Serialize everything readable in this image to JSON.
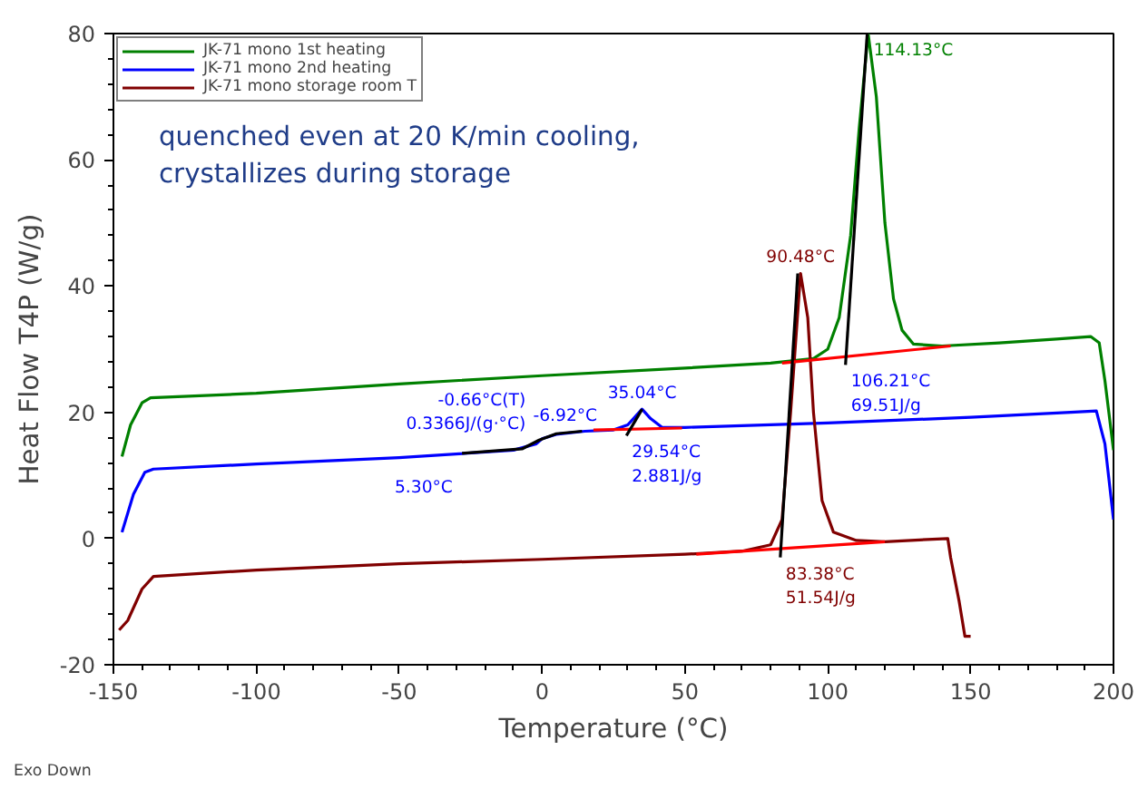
{
  "chart_data": {
    "type": "line",
    "xlabel": "Temperature (°C)",
    "ylabel": "Heat Flow T4P (W/g)",
    "xlim": [
      -150,
      200
    ],
    "ylim": [
      -20,
      80
    ],
    "xticks": [
      -150,
      -100,
      -50,
      0,
      50,
      100,
      150,
      200
    ],
    "yticks": [
      -20,
      0,
      20,
      40,
      60,
      80
    ],
    "grid": false,
    "legend": "top left",
    "marker": "none",
    "line_style": "solid",
    "series": [
      {
        "name": "JK-71 mono 1st heating",
        "color": "#008000",
        "x": [
          -147,
          -144,
          -140,
          -137,
          -100,
          -50,
          0,
          50,
          80,
          95,
          100,
          104,
          108,
          111,
          114.13,
          117,
          120,
          123,
          126,
          130,
          140,
          160,
          180,
          192,
          195,
          197,
          200
        ],
        "values": [
          13,
          18,
          21.5,
          22.3,
          23,
          24.5,
          25.8,
          27,
          27.8,
          28.5,
          30,
          35,
          48,
          65,
          80,
          70,
          50,
          38,
          33,
          30.8,
          30.5,
          31,
          31.6,
          32,
          31,
          25,
          14
        ]
      },
      {
        "name": "JK-71 mono 2nd heating",
        "color": "#0000ff",
        "x": [
          -147,
          -143,
          -139,
          -136,
          -100,
          -50,
          -10,
          -2,
          0,
          5,
          15,
          25,
          30,
          35,
          38,
          42,
          50,
          100,
          150,
          185,
          194,
          197,
          200
        ],
        "values": [
          1,
          7,
          10.5,
          11,
          11.8,
          12.8,
          14,
          15,
          15.8,
          16.5,
          17,
          17.2,
          18,
          20.5,
          19,
          17.6,
          17.6,
          18.3,
          19.2,
          20,
          20.2,
          15,
          3
        ]
      },
      {
        "name": "JK-71 mono storage room T",
        "color": "#800000",
        "x": [
          -148,
          -145,
          -140,
          -136,
          -100,
          -50,
          0,
          50,
          70,
          80,
          84,
          87,
          90.48,
          93,
          95,
          98,
          102,
          110,
          120,
          142,
          143,
          146,
          148,
          150
        ],
        "values": [
          -14.5,
          -13,
          -8,
          -6,
          -5,
          -4,
          -3.3,
          -2.5,
          -2,
          -1,
          3,
          20,
          42,
          35,
          20,
          6,
          1,
          -0.3,
          -0.5,
          0,
          -3,
          -10,
          -15.5,
          -15.5
        ]
      },
      {
        "color": "#ff0000",
        "x": [
          84,
          143
        ],
        "values": [
          27.8,
          30.5
        ]
      },
      {
        "color": "#ff0000",
        "x": [
          18,
          49
        ],
        "values": [
          17.2,
          17.5
        ]
      },
      {
        "color": "#ff0000",
        "x": [
          54,
          120
        ],
        "values": [
          -2.5,
          -0.5
        ]
      },
      {
        "color": "#000000",
        "x": [
          106.21,
          113.8
        ],
        "values": [
          27.5,
          80
        ]
      },
      {
        "color": "#000000",
        "x": [
          83.38,
          89.5
        ],
        "values": [
          -3,
          42
        ]
      },
      {
        "color": "#000000",
        "x": [
          29.54,
          35.04
        ],
        "values": [
          16.3,
          20.5
        ]
      },
      {
        "color": "#000000",
        "x": [
          -28,
          -7,
          -1,
          5,
          14
        ],
        "values": [
          13.5,
          14.2,
          15.6,
          16.6,
          17
        ]
      }
    ],
    "annotations": [
      "quenched even at 20 K/min cooling,\ncrystallizes during storage",
      "5.30°C",
      "Exo Down",
      {
        "text": "114.13°C",
        "x": 114.13,
        "y": 80
      },
      {
        "text": "106.21°C\n69.51J/g",
        "x": 106.21,
        "y": 27.5
      },
      {
        "text": "90.48°C",
        "x": 90.48,
        "y": 42
      },
      {
        "text": "83.38°C\n51.54J/g",
        "x": 83.38,
        "y": -3
      },
      {
        "text": "35.04°C",
        "x": 35.04,
        "y": 20.5
      },
      {
        "text": "29.54°C\n2.881J/g",
        "x": 29.54,
        "y": 16.3
      },
      {
        "text": "-6.92°C",
        "x": -6.92,
        "y": 14.4
      },
      {
        "text": "-0.66°C(T)\n0.3366J/(g·°C)",
        "x": -0.66,
        "y": 15.6
      }
    ]
  }
}
